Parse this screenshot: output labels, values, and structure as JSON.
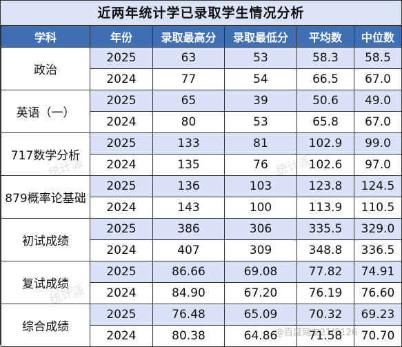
{
  "title": "近两年统计学已录取学生情况分析",
  "headers": [
    "学科",
    "年份",
    "录取最高分",
    "录取最低分",
    "平均数",
    "中位数"
  ],
  "subjects": [
    {
      "name": "政治",
      "rows": [
        {
          "year": "2025",
          "max": "63",
          "min": "53",
          "avg": "58.3",
          "median": "58.5"
        },
        {
          "year": "2024",
          "max": "77",
          "min": "54",
          "avg": "66.5",
          "median": "67.0"
        }
      ]
    },
    {
      "name": "英语（一）",
      "rows": [
        {
          "year": "2025",
          "max": "65",
          "min": "39",
          "avg": "50.6",
          "median": "49.0"
        },
        {
          "year": "2024",
          "max": "80",
          "min": "53",
          "avg": "65.8",
          "median": "67.0"
        }
      ]
    },
    {
      "name": "717数学分析",
      "rows": [
        {
          "year": "2025",
          "max": "133",
          "min": "81",
          "avg": "102.9",
          "median": "99.0"
        },
        {
          "year": "2024",
          "max": "135",
          "min": "76",
          "avg": "102.6",
          "median": "97.0"
        }
      ]
    },
    {
      "name": "879概率论基础",
      "rows": [
        {
          "year": "2025",
          "max": "136",
          "min": "103",
          "avg": "123.8",
          "median": "124.5"
        },
        {
          "year": "2024",
          "max": "143",
          "min": "100",
          "avg": "113.9",
          "median": "110.5"
        }
      ]
    },
    {
      "name": "初试成绩",
      "rows": [
        {
          "year": "2025",
          "max": "386",
          "min": "306",
          "avg": "335.5",
          "median": "329.0"
        },
        {
          "year": "2024",
          "max": "407",
          "min": "309",
          "avg": "348.8",
          "median": "336.5"
        }
      ]
    },
    {
      "name": "复试成绩",
      "rows": [
        {
          "year": "2025",
          "max": "86.66",
          "min": "69.08",
          "avg": "77.82",
          "median": "74.91"
        },
        {
          "year": "2024",
          "max": "84.90",
          "min": "67.20",
          "avg": "76.19",
          "median": "76.60"
        }
      ]
    },
    {
      "name": "综合成绩",
      "rows": [
        {
          "year": "2025",
          "max": "76.48",
          "min": "65.09",
          "avg": "70.32",
          "median": "69.23"
        },
        {
          "year": "2024",
          "max": "80.38",
          "min": "64.86",
          "avg": "71.58",
          "median": "70.70"
        }
      ]
    }
  ],
  "watermarks": [
    "统计派",
    "统计派",
    "统计派",
    "@百度网友21f8126"
  ]
}
